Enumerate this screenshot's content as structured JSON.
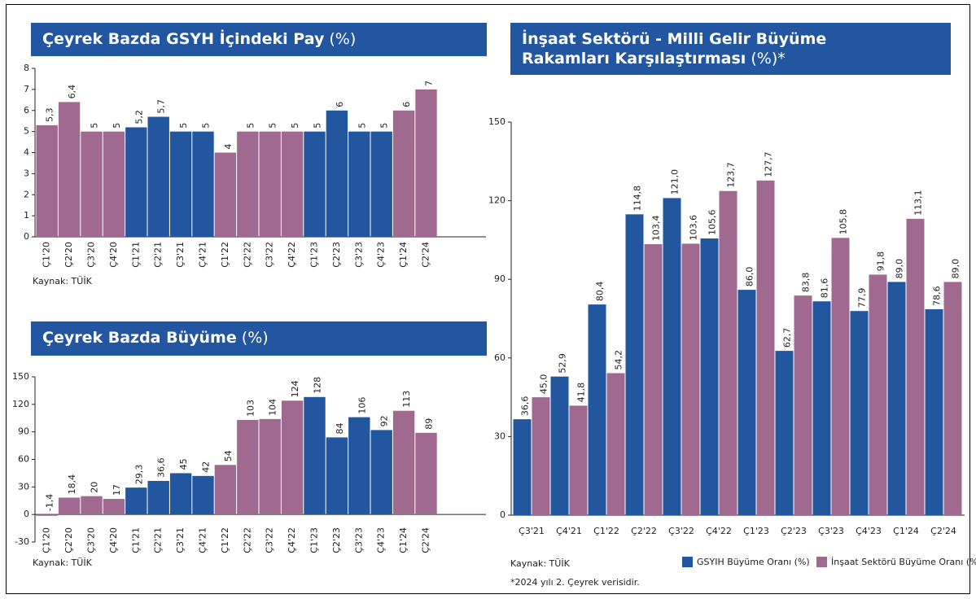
{
  "chart_data": [
    {
      "type": "bar",
      "title": "Çeyrek Bazda GSYH İçindeki Pay",
      "unit": "(%)",
      "categories": [
        "Ç1'20",
        "Ç2'20",
        "Ç3'20",
        "Ç4'20",
        "Ç1'21",
        "Ç2'21",
        "Ç3'21",
        "Ç4'21",
        "Ç1'22",
        "Ç2'22",
        "Ç3'22",
        "Ç4'22",
        "Ç1'23",
        "Ç2'23",
        "Ç3'23",
        "Ç4'23",
        "Ç1'24",
        "Ç2'24"
      ],
      "values": [
        5.3,
        6.4,
        5,
        5,
        5.2,
        5.7,
        5,
        5,
        4,
        5,
        5,
        5,
        5,
        6,
        5,
        5,
        6,
        7
      ],
      "value_labels": [
        "5,3",
        "6,4",
        "5",
        "5",
        "5,2",
        "5,7",
        "5",
        "5",
        "4",
        "5",
        "5",
        "5",
        "5",
        "6",
        "5",
        "5",
        "6",
        "7"
      ],
      "colors": [
        "#a06990",
        "#a06990",
        "#a06990",
        "#a06990",
        "#2257a0",
        "#2257a0",
        "#2257a0",
        "#2257a0",
        "#a06990",
        "#a06990",
        "#a06990",
        "#a06990",
        "#2257a0",
        "#2257a0",
        "#2257a0",
        "#2257a0",
        "#a06990",
        "#a06990"
      ],
      "ylim": [
        0,
        8
      ],
      "yticks": [
        0,
        1,
        2,
        3,
        4,
        5,
        6,
        7,
        8
      ],
      "grid": false,
      "source": "Kaynak: TÜİK"
    },
    {
      "type": "bar",
      "title": "Çeyrek Bazda Büyüme",
      "unit": "(%)",
      "categories": [
        "Ç1'20",
        "Ç2'20",
        "Ç3'20",
        "Ç4'20",
        "Ç1'21",
        "Ç2'21",
        "Ç3'21",
        "Ç4'21",
        "Ç1'22",
        "Ç2'22",
        "Ç3'22",
        "Ç4'22",
        "Ç1'23",
        "Ç2'23",
        "Ç3'23",
        "Ç4'23",
        "Ç1'24",
        "Ç2'24"
      ],
      "values": [
        -1.4,
        18.4,
        20,
        17,
        29.3,
        36.6,
        45,
        42,
        54,
        103,
        104,
        124,
        128,
        84,
        106,
        92,
        113,
        89
      ],
      "value_labels": [
        "-1,4",
        "18,4",
        "20",
        "17",
        "29,3",
        "36,6",
        "45",
        "42",
        "54",
        "103",
        "104",
        "124",
        "128",
        "84",
        "106",
        "92",
        "113",
        "89"
      ],
      "colors": [
        "#a06990",
        "#a06990",
        "#a06990",
        "#a06990",
        "#2257a0",
        "#2257a0",
        "#2257a0",
        "#2257a0",
        "#a06990",
        "#a06990",
        "#a06990",
        "#a06990",
        "#2257a0",
        "#2257a0",
        "#2257a0",
        "#2257a0",
        "#a06990",
        "#a06990"
      ],
      "ylim": [
        -30,
        150
      ],
      "yticks": [
        -30,
        0,
        30,
        60,
        90,
        120,
        150
      ],
      "grid": false,
      "source": "Kaynak: TÜİK"
    },
    {
      "type": "grouped_bar",
      "title": "İnşaat Sektörü - Milli Gelir Büyüme Rakamları Karşılaştırması",
      "unit": "(%)*",
      "categories": [
        "Ç3'21",
        "Ç4'21",
        "Ç1'22",
        "Ç2'22",
        "Ç3'22",
        "Ç4'22",
        "Ç1'23",
        "Ç2'23",
        "Ç3'23",
        "Ç4'23",
        "Ç1'24",
        "Ç2'24"
      ],
      "series": [
        {
          "name": "GSYIH Büyüme Oranı (%)",
          "color": "#2257a0",
          "values": [
            36.6,
            52.9,
            80.4,
            114.8,
            121.0,
            105.6,
            86.0,
            62.7,
            81.6,
            77.9,
            89.0,
            78.6
          ],
          "value_labels": [
            "36,6",
            "52,9",
            "80,4",
            "114,8",
            "121,0",
            "105,6",
            "86,0",
            "62,7",
            "81,6",
            "77,9",
            "89,0",
            "78,6"
          ]
        },
        {
          "name": "İnşaat Sektörü Büyüme Oranı (%)",
          "color": "#a06990",
          "values": [
            45.0,
            41.8,
            54.2,
            103.4,
            103.6,
            123.7,
            127.7,
            83.8,
            105.8,
            91.8,
            113.1,
            89.0
          ],
          "value_labels": [
            "45,0",
            "41,8",
            "54,2",
            "103,4",
            "103,6",
            "123,7",
            "127,7",
            "83,8",
            "105,8",
            "91,8",
            "113,1",
            "89,0"
          ]
        }
      ],
      "ylim": [
        0,
        150
      ],
      "yticks": [
        0,
        30,
        60,
        90,
        120,
        150
      ],
      "grid": false,
      "legend": "bottom",
      "source": "Kaynak: TÜİK",
      "note": "*2024 yılı 2. Çeyrek verisidir."
    }
  ]
}
